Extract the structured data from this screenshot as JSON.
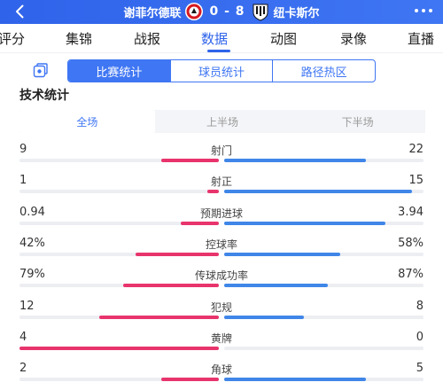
{
  "header": {
    "home_team": "谢菲尔德联",
    "score": "0 - 8",
    "away_team": "纽卡斯尔"
  },
  "tabs": [
    "评分",
    "集锦",
    "战报",
    "数据",
    "动图",
    "录像",
    "直播"
  ],
  "active_tab": "数据",
  "segmented": [
    "比赛统计",
    "球员统计",
    "路径热区"
  ],
  "section_title": "技术统计",
  "periods": [
    "全场",
    "上半场",
    "下半场"
  ],
  "colors": {
    "accent": "#3f76f3",
    "home": "#e8346c",
    "away": "#3f86e8"
  },
  "stats": [
    {
      "name": "射门",
      "home": "9",
      "away": "22",
      "home_share": 0.29,
      "away_share": 0.71
    },
    {
      "name": "射正",
      "home": "1",
      "away": "15",
      "home_share": 0.06,
      "away_share": 0.94
    },
    {
      "name": "预期进球",
      "home": "0.94",
      "away": "3.94",
      "home_share": 0.19,
      "away_share": 0.81
    },
    {
      "name": "控球率",
      "home": "42%",
      "away": "58%",
      "home_share": 0.42,
      "away_share": 0.58
    },
    {
      "name": "传球成功率",
      "home": "79%",
      "away": "87%",
      "home_share": 0.48,
      "away_share": 0.52
    },
    {
      "name": "犯规",
      "home": "12",
      "away": "8",
      "home_share": 0.6,
      "away_share": 0.4
    },
    {
      "name": "黄牌",
      "home": "4",
      "away": "0",
      "home_share": 1.0,
      "away_share": 0.0
    },
    {
      "name": "角球",
      "home": "2",
      "away": "5",
      "home_share": 0.29,
      "away_share": 0.71
    }
  ]
}
